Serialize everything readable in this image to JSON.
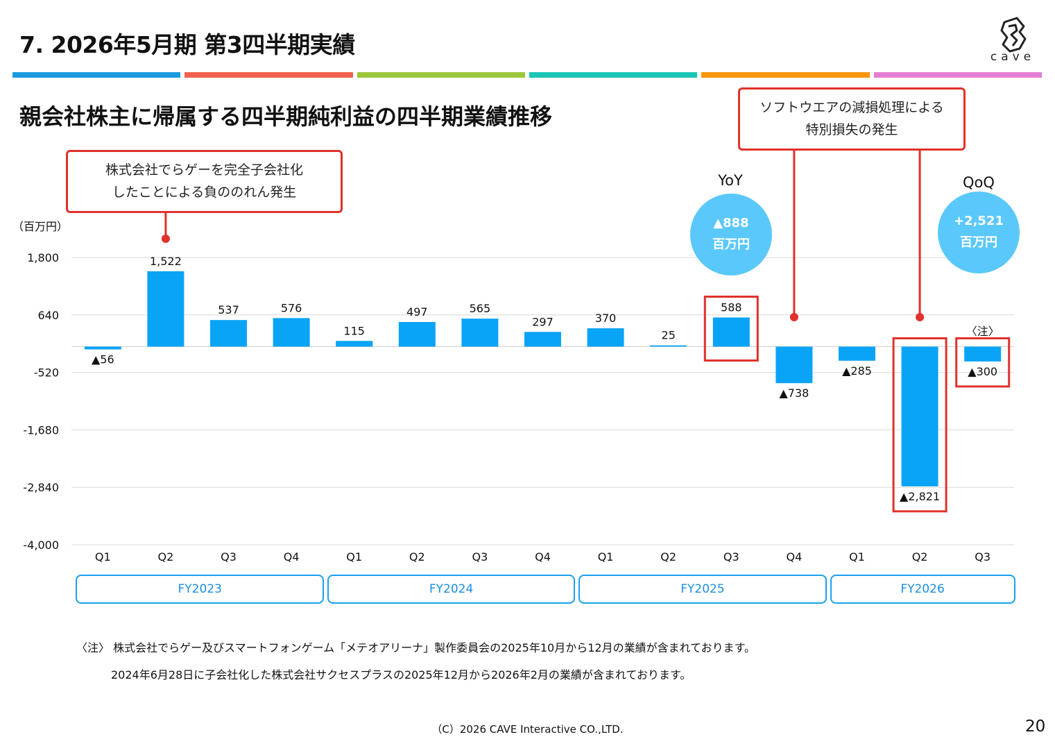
{
  "header": {
    "title": "7.  2026年5月期  第3四半期実績",
    "logo_text": "cave",
    "stripe_colors": [
      "#1a9be0",
      "#f0624f",
      "#9bc63b",
      "#1cc5b5",
      "#f7960f",
      "#e57ed3"
    ]
  },
  "chart_title": "親会社株主に帰属する四半期純利益の四半期業績推移",
  "callouts": {
    "left": {
      "line1": "株式会社でらゲーを完全子会社化",
      "line2": "したことによる負ののれん発生"
    },
    "right": {
      "line1": "ソフトウエアの減損処理による",
      "line2": "特別損失の発生"
    }
  },
  "yoy": {
    "label": "YoY",
    "value": "▲888",
    "unit": "百万円"
  },
  "qoq": {
    "label": "QoQ",
    "value": "+2,521",
    "unit": "百万円"
  },
  "colors": {
    "bar": "#0aa4f6",
    "callout": "#e0312b",
    "bubble": "#5ac8fa",
    "fy_border": "#1aa0ee"
  },
  "chart_data": {
    "type": "bar",
    "yunit": "（百万円）",
    "ylim": [
      -4000,
      1800
    ],
    "yticks": [
      1800,
      640,
      -520,
      -1680,
      -2840,
      -4000
    ],
    "ytick_labels": [
      "1,800",
      "640",
      "-520",
      "-1,680",
      "-2,840",
      "-4,000"
    ],
    "categories": [
      "Q1",
      "Q2",
      "Q3",
      "Q4",
      "Q1",
      "Q2",
      "Q3",
      "Q4",
      "Q1",
      "Q2",
      "Q3",
      "Q4",
      "Q1",
      "Q2",
      "Q3"
    ],
    "values": [
      -56,
      1522,
      537,
      576,
      115,
      497,
      565,
      297,
      370,
      25,
      588,
      -738,
      -285,
      -2821,
      -300
    ],
    "data_labels": [
      "▲56",
      "1,522",
      "537",
      "576",
      "115",
      "497",
      "565",
      "297",
      "370",
      "25",
      "588",
      "▲738",
      "▲285",
      "▲2,821",
      "▲300"
    ],
    "highlighted": [
      10,
      13,
      14
    ],
    "callout_points": [
      1,
      11,
      13
    ],
    "note_mark": "〈注〉",
    "note_index": 14,
    "grid": true,
    "groups": [
      {
        "label": "FY2023",
        "from": 0,
        "to": 3
      },
      {
        "label": "FY2024",
        "from": 4,
        "to": 7
      },
      {
        "label": "FY2025",
        "from": 8,
        "to": 11
      },
      {
        "label": "FY2026",
        "from": 12,
        "to": 14
      }
    ]
  },
  "footnotes": {
    "line1": "〈注〉 株式会社でらゲー及びスマートフォンゲーム「メテオアリーナ」製作委員会の2025年10月から12月の業績が含まれております。",
    "line2": "2024年6月28日に子会社化した株式会社サクセスプラスの2025年12月から2026年2月の業績が含まれております。"
  },
  "copyright": "（C）2026 CAVE Interactive CO.,LTD.",
  "page_number": "20"
}
